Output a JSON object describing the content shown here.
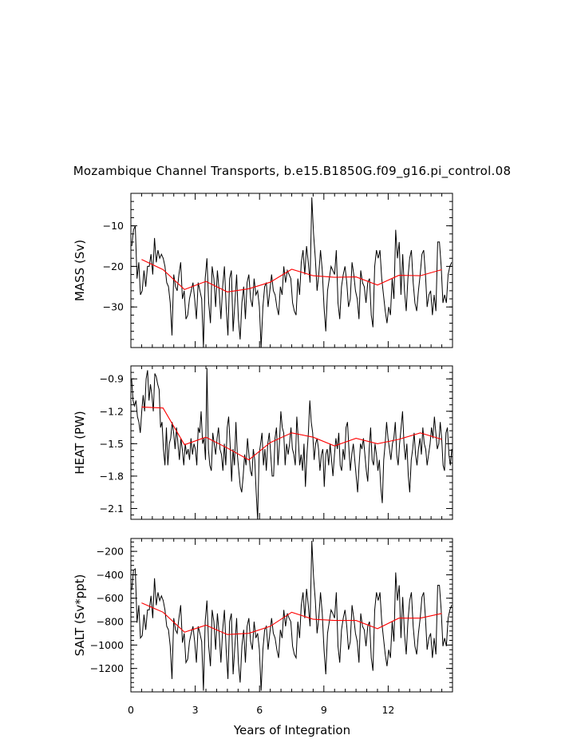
{
  "title": "Mozambique Channel Transports, b.e15.B1850G.f09_g16.pi_control.08",
  "chart_data": {
    "type": "line",
    "title": "Mozambique Channel Transports, b.e15.B1850G.f09_g16.pi_control.08",
    "xlabel": "Years of Integration",
    "xlim": [
      0,
      15
    ],
    "xticks": [
      0,
      3,
      6,
      9,
      12
    ],
    "xtick_labels": [
      "0",
      "3",
      "6",
      "9",
      "12"
    ],
    "grid": false,
    "panels": [
      {
        "ylabel": "MASS (Sv)",
        "ylim": [
          -40,
          -2
        ],
        "yticks": [
          -10,
          -20,
          -30
        ],
        "ytick_labels": [
          "−10",
          "−20",
          "−30"
        ],
        "series": [
          {
            "color": "#000000",
            "values": [
              -15,
              -11,
              -10,
              -23,
              -19,
              -27,
              -26,
              -21,
              -25,
              -20,
              -20,
              -17,
              -22,
              -13,
              -19,
              -16,
              -18,
              -17,
              -18,
              -20,
              -24,
              -25,
              -29,
              -37,
              -22,
              -25,
              -26,
              -22,
              -19,
              -28,
              -26,
              -33,
              -32,
              -28,
              -26,
              -24,
              -28,
              -33,
              -24,
              -26,
              -28,
              -40,
              -23,
              -18,
              -29,
              -34,
              -20,
              -23,
              -30,
              -21,
              -26,
              -33,
              -25,
              -20,
              -30,
              -37,
              -23,
              -21,
              -36,
              -29,
              -22,
              -33,
              -38,
              -29,
              -25,
              -33,
              -24,
              -22,
              -28,
              -30,
              -23,
              -27,
              -26,
              -30,
              -40,
              -30,
              -25,
              -24,
              -30,
              -26,
              -22,
              -26,
              -27,
              -30,
              -32,
              -25,
              -27,
              -20,
              -24,
              -21,
              -22,
              -23,
              -29,
              -31,
              -32,
              -23,
              -27,
              -19,
              -16,
              -22,
              -15,
              -19,
              -24,
              -3,
              -12,
              -18,
              -26,
              -22,
              -16,
              -21,
              -30,
              -36,
              -26,
              -23,
              -20,
              -21,
              -22,
              -16,
              -29,
              -33,
              -25,
              -22,
              -20,
              -24,
              -30,
              -28,
              -19,
              -22,
              -26,
              -28,
              -33,
              -21,
              -24,
              -25,
              -29,
              -24,
              -23,
              -32,
              -35,
              -20,
              -16,
              -18,
              -16,
              -23,
              -27,
              -31,
              -34,
              -30,
              -32,
              -23,
              -28,
              -11,
              -18,
              -14,
              -27,
              -17,
              -26,
              -31,
              -23,
              -18,
              -16,
              -24,
              -29,
              -31,
              -26,
              -22,
              -17,
              -16,
              -22,
              -30,
              -27,
              -26,
              -32,
              -27,
              -31,
              -14,
              -14,
              -20,
              -29,
              -27,
              -29,
              -22,
              -20,
              -19
            ]
          },
          {
            "color": "#ff0000",
            "values": [
              -18.3,
              -20.8,
              -25.7,
              -23.7,
              -26.3,
              -25.5,
              -23.9,
              -20.7,
              -22.3,
              -22.7,
              -22.6,
              -24.6,
              -22.2,
              -22.3,
              -20.8
            ]
          }
        ]
      },
      {
        "ylabel": "HEAT (PW)",
        "ylim": [
          -2.2,
          -0.78
        ],
        "yticks": [
          -0.9,
          -1.2,
          -1.5,
          -1.8,
          -2.1
        ],
        "ytick_labels": [
          "−0.9",
          "−1.2",
          "−1.5",
          "−1.8",
          "−2.1"
        ],
        "series": [
          {
            "color": "#000000",
            "values": [
              -0.9,
              -1.1,
              -1.15,
              -1.1,
              -1.25,
              -1.3,
              -1.4,
              -1.2,
              -1.05,
              -1.2,
              -0.9,
              -0.82,
              -1.1,
              -0.95,
              -1.05,
              -1.2,
              -0.85,
              -0.88,
              -0.95,
              -1.0,
              -1.35,
              -1.3,
              -1.55,
              -1.7,
              -1.35,
              -1.7,
              -1.5,
              -1.45,
              -1.3,
              -1.4,
              -1.55,
              -1.35,
              -1.5,
              -1.65,
              -1.45,
              -1.55,
              -1.7,
              -1.5,
              -1.6,
              -1.55,
              -1.65,
              -1.45,
              -1.6,
              -1.5,
              -1.55,
              -1.7,
              -1.35,
              -1.4,
              -1.2,
              -1.5,
              -1.45,
              -1.65,
              -0.8,
              -1.55,
              -1.7,
              -1.75,
              -1.4,
              -1.5,
              -1.6,
              -1.45,
              -1.35,
              -1.55,
              -1.6,
              -1.75,
              -1.5,
              -1.7,
              -1.35,
              -1.25,
              -1.5,
              -1.85,
              -1.55,
              -1.7,
              -1.3,
              -1.6,
              -1.75,
              -1.9,
              -1.95,
              -1.8,
              -1.6,
              -1.7,
              -1.45,
              -1.6,
              -1.75,
              -1.8,
              -1.55,
              -1.65,
              -1.95,
              -2.2,
              -1.6,
              -1.5,
              -1.4,
              -1.7,
              -1.55,
              -1.75,
              -1.5,
              -1.4,
              -1.6,
              -1.8,
              -1.8,
              -1.45,
              -1.35,
              -1.7,
              -1.5,
              -1.2,
              -1.35,
              -1.4,
              -1.7,
              -1.5,
              -1.6,
              -1.5,
              -1.35,
              -1.55,
              -1.6,
              -1.7,
              -1.25,
              -1.45,
              -1.7,
              -1.6,
              -1.75,
              -1.5,
              -1.9,
              -1.6,
              -1.4,
              -1.1,
              -1.3,
              -1.4,
              -1.65,
              -1.5,
              -1.45,
              -1.55,
              -1.75,
              -1.6,
              -1.55,
              -1.9,
              -1.6,
              -1.55,
              -1.7,
              -1.5,
              -1.65,
              -1.8,
              -1.6,
              -1.45,
              -1.55,
              -1.4,
              -1.7,
              -1.75,
              -1.55,
              -1.65,
              -1.35,
              -1.3,
              -1.55,
              -1.75,
              -1.6,
              -1.5,
              -1.65,
              -1.8,
              -1.95,
              -1.7,
              -1.5,
              -1.55,
              -1.45,
              -1.6,
              -1.75,
              -1.85,
              -1.55,
              -1.35,
              -1.65,
              -1.7,
              -1.5,
              -1.6,
              -1.75,
              -1.65,
              -1.9,
              -2.05,
              -1.65,
              -1.5,
              -1.3,
              -1.45,
              -1.55,
              -1.65,
              -1.5,
              -1.45,
              -1.3,
              -1.6,
              -1.7,
              -1.5,
              -1.35,
              -1.2,
              -1.5,
              -1.65,
              -1.5,
              -1.8,
              -1.95,
              -1.65,
              -1.55,
              -1.4,
              -1.6,
              -1.7,
              -1.55,
              -1.45,
              -1.6,
              -1.35,
              -1.5,
              -1.55,
              -1.7,
              -1.6,
              -1.5,
              -1.35,
              -1.45,
              -1.25,
              -1.4,
              -1.55,
              -1.5,
              -1.3,
              -1.45,
              -1.7,
              -1.75,
              -1.4,
              -1.35,
              -1.6,
              -1.7,
              -1.55
            ]
          },
          {
            "color": "#ff0000",
            "values": [
              -1.16,
              -1.17,
              -1.51,
              -1.44,
              -1.54,
              -1.65,
              -1.49,
              -1.4,
              -1.44,
              -1.52,
              -1.45,
              -1.5,
              -1.46,
              -1.4,
              -1.46
            ]
          }
        ]
      },
      {
        "ylabel": "SALT (Sv*ppt)",
        "ylim": [
          -1400,
          -90
        ],
        "yticks": [
          -200,
          -400,
          -600,
          -800,
          -1000,
          -1200
        ],
        "ytick_labels": [
          "−200",
          "−400",
          "−600",
          "−800",
          "−1000",
          "−1200"
        ],
        "series": [
          {
            "color": "#000000",
            "values": [
              -530,
              -360,
              -350,
              -810,
              -660,
              -940,
              -920,
              -740,
              -870,
              -700,
              -700,
              -580,
              -770,
              -430,
              -660,
              -550,
              -620,
              -580,
              -620,
              -700,
              -840,
              -870,
              -1010,
              -1290,
              -770,
              -870,
              -900,
              -770,
              -660,
              -980,
              -900,
              -1150,
              -1120,
              -970,
              -900,
              -840,
              -970,
              -1150,
              -840,
              -900,
              -970,
              -1390,
              -800,
              -620,
              -1010,
              -1180,
              -700,
              -800,
              -1040,
              -730,
              -900,
              -1150,
              -870,
              -700,
              -1040,
              -1290,
              -800,
              -730,
              -1250,
              -1010,
              -770,
              -1150,
              -1320,
              -1010,
              -870,
              -1150,
              -840,
              -770,
              -970,
              -1040,
              -800,
              -940,
              -900,
              -1040,
              -1390,
              -1040,
              -870,
              -840,
              -1040,
              -900,
              -770,
              -900,
              -940,
              -1040,
              -1110,
              -870,
              -940,
              -700,
              -840,
              -730,
              -770,
              -800,
              -1010,
              -1080,
              -1110,
              -800,
              -940,
              -660,
              -550,
              -770,
              -520,
              -660,
              -840,
              -110,
              -420,
              -620,
              -900,
              -770,
              -550,
              -730,
              -1040,
              -1250,
              -900,
              -800,
              -700,
              -730,
              -770,
              -550,
              -1010,
              -1150,
              -870,
              -770,
              -700,
              -840,
              -1040,
              -970,
              -660,
              -770,
              -900,
              -970,
              -1150,
              -730,
              -840,
              -870,
              -1010,
              -840,
              -800,
              -1110,
              -1220,
              -700,
              -550,
              -620,
              -550,
              -800,
              -940,
              -1080,
              -1180,
              -1040,
              -1110,
              -800,
              -970,
              -380,
              -620,
              -490,
              -940,
              -590,
              -900,
              -1080,
              -800,
              -620,
              -550,
              -840,
              -1010,
              -1080,
              -900,
              -770,
              -590,
              -550,
              -770,
              -1040,
              -940,
              -900,
              -1110,
              -940,
              -1080,
              -490,
              -490,
              -700,
              -1010,
              -940,
              -1010,
              -770,
              -700,
              -660
            ]
          },
          {
            "color": "#ff0000",
            "values": [
              -640,
              -720,
              -890,
              -830,
              -910,
              -900,
              -840,
              -720,
              -780,
              -790,
              -790,
              -860,
              -770,
              -770,
              -730
            ]
          }
        ]
      }
    ]
  }
}
